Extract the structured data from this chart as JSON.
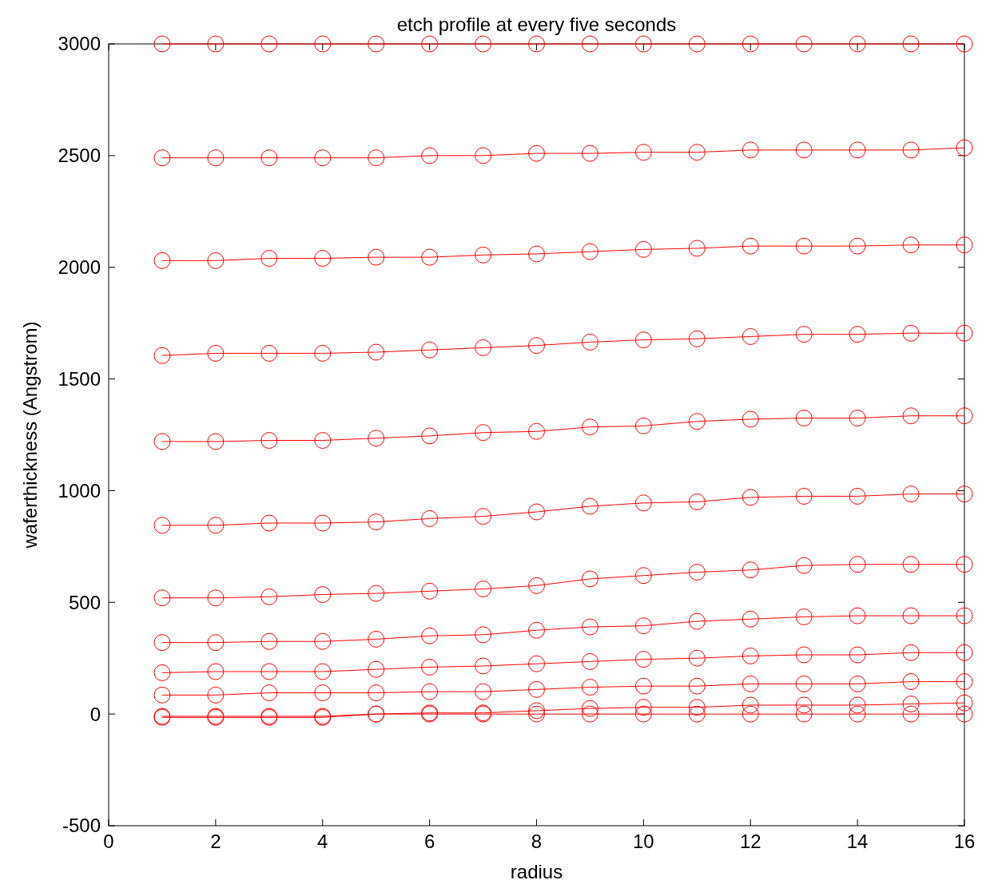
{
  "chart_data": {
    "type": "line",
    "title": "etch profile at every five seconds",
    "xlabel": "radius",
    "ylabel": "waferthickness (Angstrom)",
    "x": [
      1,
      2,
      3,
      4,
      5,
      6,
      7,
      8,
      9,
      10,
      11,
      12,
      13,
      14,
      15,
      16
    ],
    "xlim": [
      0,
      16
    ],
    "xticks": [
      0,
      2,
      4,
      6,
      8,
      10,
      12,
      14,
      16
    ],
    "ylim": [
      -500,
      3000
    ],
    "yticks": [
      -500,
      0,
      500,
      1000,
      1500,
      2000,
      2500,
      3000
    ],
    "marker": "circle",
    "line_style": "solid",
    "grid": false,
    "series": [
      {
        "color": "#ff0000",
        "values": [
          3000,
          3000,
          3000,
          3000,
          3000,
          3000,
          3000,
          3000,
          3000,
          3000,
          3000,
          3000,
          3000,
          3000,
          3000,
          3000
        ]
      },
      {
        "color": "#ff0000",
        "values": [
          2490,
          2490,
          2490,
          2490,
          2490,
          2500,
          2500,
          2510,
          2510,
          2515,
          2515,
          2525,
          2525,
          2525,
          2525,
          2535
        ]
      },
      {
        "color": "#ff0000",
        "values": [
          2030,
          2030,
          2040,
          2040,
          2045,
          2045,
          2055,
          2060,
          2070,
          2080,
          2085,
          2095,
          2095,
          2095,
          2100,
          2100
        ]
      },
      {
        "color": "#ff0000",
        "values": [
          1605,
          1615,
          1615,
          1615,
          1620,
          1630,
          1640,
          1650,
          1665,
          1675,
          1680,
          1690,
          1700,
          1700,
          1705,
          1705
        ]
      },
      {
        "color": "#ff0000",
        "values": [
          1220,
          1220,
          1225,
          1225,
          1235,
          1245,
          1260,
          1265,
          1285,
          1290,
          1310,
          1320,
          1325,
          1325,
          1335,
          1335
        ]
      },
      {
        "color": "#ff0000",
        "values": [
          845,
          845,
          855,
          855,
          860,
          875,
          885,
          905,
          930,
          945,
          950,
          970,
          975,
          975,
          985,
          985
        ]
      },
      {
        "color": "#ff0000",
        "values": [
          520,
          520,
          525,
          535,
          540,
          550,
          560,
          575,
          605,
          620,
          635,
          645,
          665,
          670,
          670,
          670
        ]
      },
      {
        "color": "#ff0000",
        "values": [
          320,
          320,
          325,
          325,
          335,
          350,
          355,
          375,
          390,
          395,
          415,
          425,
          435,
          440,
          440,
          440
        ]
      },
      {
        "color": "#ff0000",
        "values": [
          185,
          190,
          190,
          190,
          200,
          210,
          215,
          225,
          235,
          245,
          250,
          260,
          265,
          265,
          275,
          275
        ]
      },
      {
        "color": "#ff0000",
        "values": [
          85,
          85,
          95,
          95,
          95,
          100,
          100,
          110,
          120,
          125,
          125,
          135,
          135,
          135,
          145,
          145
        ]
      },
      {
        "color": "#ff0000",
        "values": [
          -10,
          -10,
          -10,
          -10,
          0,
          5,
          5,
          15,
          25,
          30,
          30,
          40,
          40,
          40,
          45,
          50
        ]
      },
      {
        "color": "#ff0000",
        "values": [
          -15,
          -15,
          -15,
          -15,
          0,
          0,
          0,
          0,
          0,
          0,
          0,
          0,
          0,
          0,
          0,
          0
        ]
      }
    ]
  }
}
